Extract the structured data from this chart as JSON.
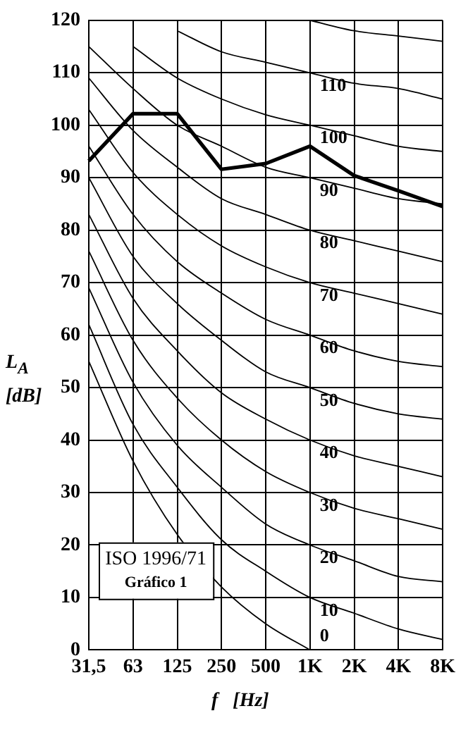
{
  "chart_data": {
    "type": "line",
    "categories": [
      "31,5",
      "63",
      "125",
      "250",
      "500",
      "1K",
      "2K",
      "4K",
      "8K"
    ],
    "xlabel": "f   [Hz]",
    "ylabel": "L$_{A}$ [dB]",
    "ylim": [
      0,
      120
    ],
    "yticks": [
      0,
      10,
      20,
      30,
      40,
      50,
      60,
      70,
      80,
      90,
      100,
      110,
      120
    ],
    "grid": true,
    "legend": false,
    "marker": "none",
    "line_style": "solid",
    "annotations": [
      "ISO 1996/71",
      "Gráfico 1"
    ],
    "series": [
      {
        "color": "#000000",
        "values": [
          93.2,
          102.2,
          102.2,
          91.6,
          92.7,
          96,
          90.4,
          87.5,
          84.5
        ]
      },
      {
        "name": "0",
        "color": "#000000",
        "values": [
          55,
          36,
          22,
          12,
          5,
          0,
          null,
          null,
          null
        ]
      },
      {
        "name": "10",
        "color": "#000000",
        "values": [
          62,
          43,
          31,
          21,
          15,
          10,
          7,
          4,
          2
        ]
      },
      {
        "name": "20",
        "color": "#000000",
        "values": [
          69,
          51,
          39,
          31,
          24,
          20,
          17,
          14,
          13
        ]
      },
      {
        "name": "30",
        "color": "#000000",
        "values": [
          76,
          59,
          48,
          40,
          34,
          30,
          27,
          25,
          23
        ]
      },
      {
        "name": "40",
        "color": "#000000",
        "values": [
          83,
          67,
          57,
          49,
          44,
          40,
          37,
          35,
          33
        ]
      },
      {
        "name": "50",
        "color": "#000000",
        "values": [
          90,
          75,
          66,
          59,
          53,
          50,
          47,
          45,
          44
        ]
      },
      {
        "name": "60",
        "color": "#000000",
        "values": [
          96,
          83,
          74,
          68,
          63,
          60,
          57,
          55,
          54
        ]
      },
      {
        "name": "70",
        "color": "#000000",
        "values": [
          103,
          91,
          83,
          77,
          73,
          70,
          68,
          66,
          64
        ]
      },
      {
        "name": "80",
        "color": "#000000",
        "values": [
          109,
          99,
          92,
          86,
          83,
          80,
          78,
          76,
          74
        ]
      },
      {
        "name": "90",
        "color": "#000000",
        "values": [
          115,
          107,
          100,
          96,
          92,
          90,
          88,
          86,
          85
        ]
      },
      {
        "name": "100",
        "color": "#000000",
        "values": [
          null,
          115,
          109,
          105,
          102,
          100,
          98,
          96,
          95
        ]
      },
      {
        "name": "110",
        "color": "#000000",
        "values": [
          null,
          null,
          118,
          114,
          112,
          110,
          108,
          107,
          105
        ]
      },
      {
        "color": "#000000",
        "values": [
          null,
          null,
          null,
          null,
          null,
          120,
          118,
          117,
          116
        ]
      }
    ]
  }
}
